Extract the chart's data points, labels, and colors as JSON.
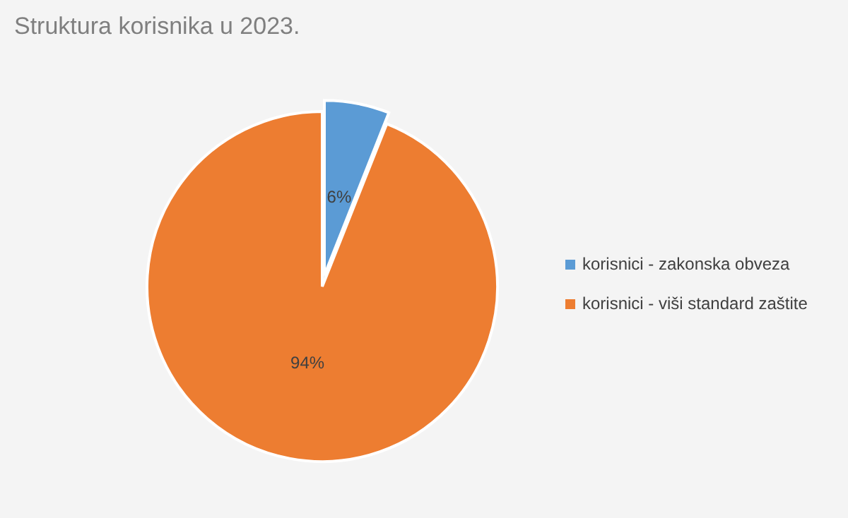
{
  "chart_data": {
    "type": "pie",
    "title": "Struktura korisnika u 2023.",
    "categories": [
      "korisnici - zakonska obveza",
      "korisnici - viši standard zaštite"
    ],
    "values": [
      6,
      94
    ],
    "colors": [
      "#5b9bd5",
      "#ed7d31"
    ],
    "value_labels": [
      "6%",
      "94%"
    ],
    "legend": "right"
  }
}
